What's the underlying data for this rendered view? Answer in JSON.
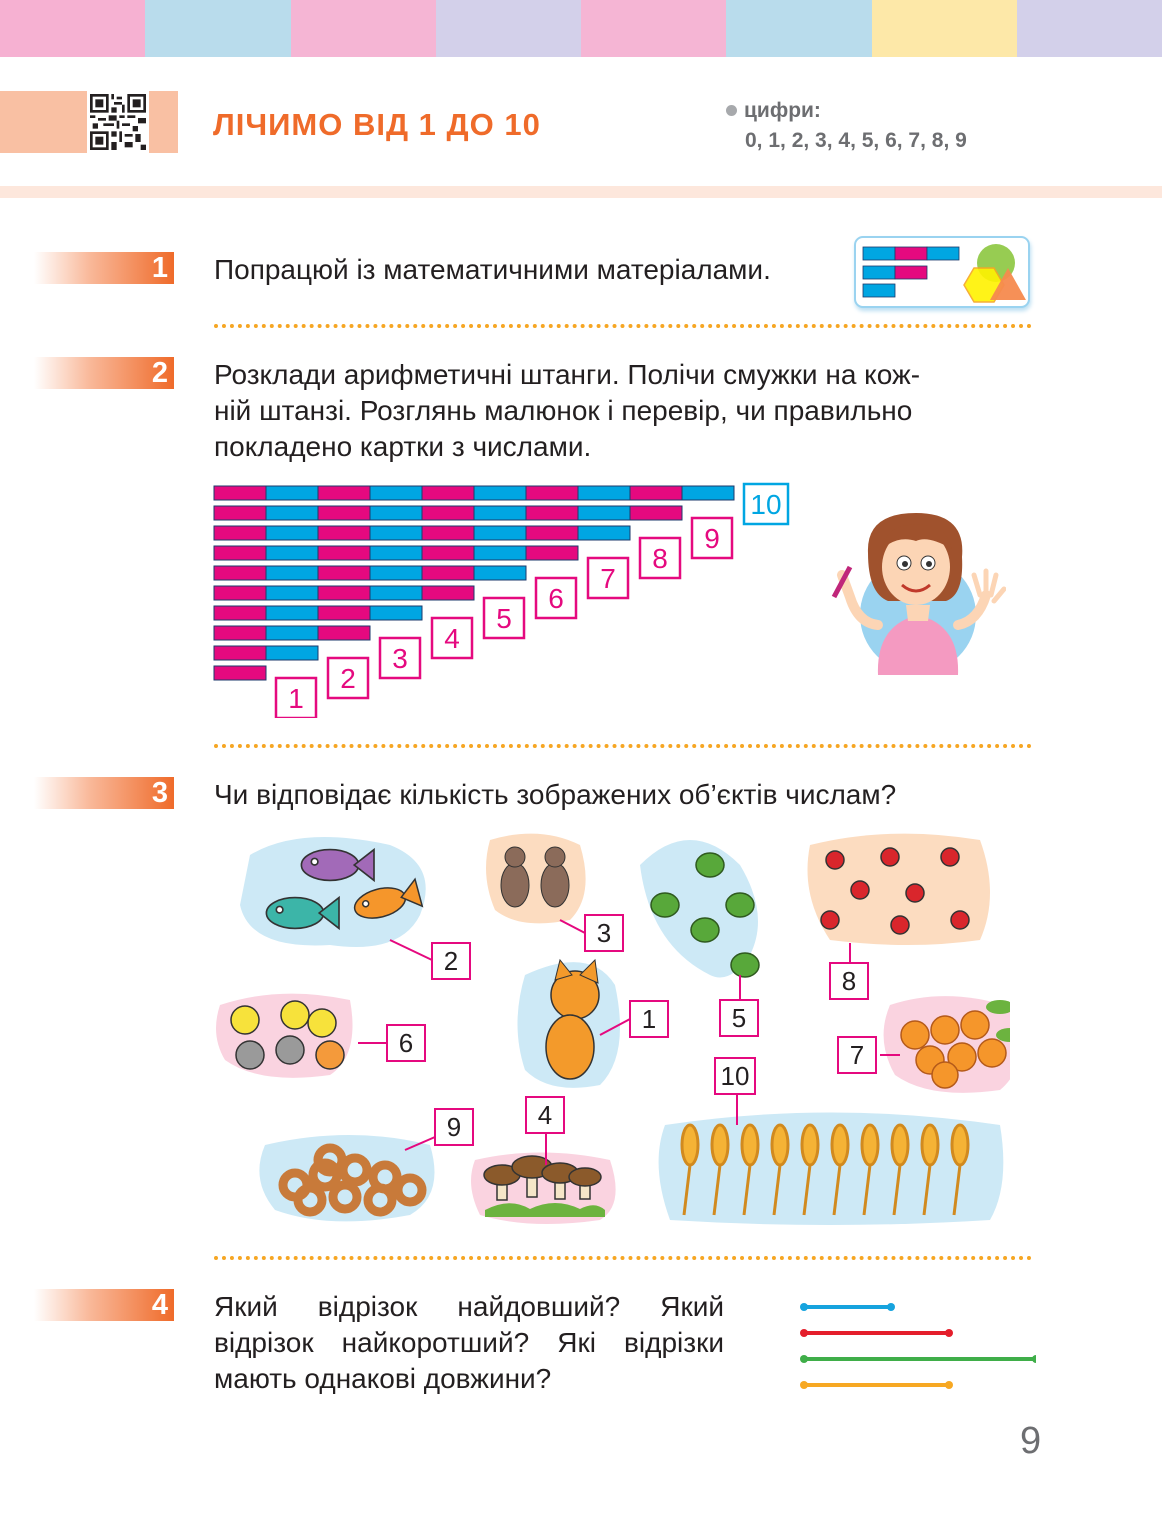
{
  "header": {
    "stripe_colors": [
      "#f6b1d2",
      "#b9dcec",
      "#f5b5d4",
      "#d3d0ea",
      "#f5b5d4",
      "#b9dcec",
      "#fde8a8",
      "#d3d0ea"
    ],
    "title": "ЛІЧИМО ВІД 1 ДО 10",
    "digits_label": "цифри:",
    "digits_list": "0, 1, 2, 3, 4, 5, 6, 7, 8, 9"
  },
  "tasks": [
    {
      "number": "1",
      "text": "Попрацюй із математичними матеріалами."
    },
    {
      "number": "2",
      "text_lines": [
        "Розклади арифметичні штанги. Полічи смужки на кож-",
        "ній штанзі. Розглянь малюнок і перевір, чи правильно",
        "покладено картки з числами."
      ]
    },
    {
      "number": "3",
      "text": "Чи відповідає кількість зображених об’єктів числам?"
    },
    {
      "number": "4",
      "text_lines": [
        "Який відрізок найдовший? Який",
        "відрізок найкоротший? Які відрізки",
        "мають однакові довжини?"
      ]
    }
  ],
  "bars": {
    "colors": {
      "pink": "#e5097f",
      "blue": "#00a6e2"
    },
    "cards": [
      "1",
      "2",
      "3",
      "4",
      "5",
      "6",
      "7",
      "8",
      "9",
      "10"
    ]
  },
  "objects": [
    {
      "label": "2",
      "icon": "fish-icon"
    },
    {
      "label": "3",
      "icon": "mouse-icon"
    },
    {
      "label": "5",
      "icon": "frog-icon"
    },
    {
      "label": "8",
      "icon": "ladybug-icon"
    },
    {
      "label": "6",
      "icon": "chick-icon"
    },
    {
      "label": "1",
      "icon": "kitten-icon"
    },
    {
      "label": "7",
      "icon": "apple-icon"
    },
    {
      "label": "10",
      "icon": "wheat-icon"
    },
    {
      "label": "9",
      "icon": "bagel-icon"
    },
    {
      "label": "4",
      "icon": "mushroom-icon"
    }
  ],
  "segments": [
    {
      "color": "#16a3de",
      "length": 3
    },
    {
      "color": "#e41e2b",
      "length": 5
    },
    {
      "color": "#3fae49",
      "length": 8
    },
    {
      "color": "#f7a823",
      "length": 5
    }
  ],
  "page_number": "9"
}
